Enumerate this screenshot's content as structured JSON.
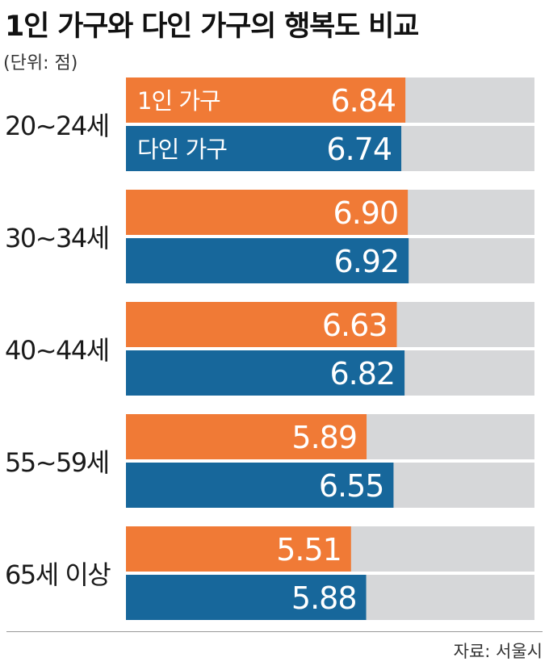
{
  "chart_data": {
    "type": "bar",
    "title": "1인 가구와 다인 가구의 행복도 비교",
    "unit_label": "(단위: 점)",
    "categories": [
      "20~24세",
      "30~34세",
      "40~44세",
      "55~59세",
      "65세 이상"
    ],
    "series": [
      {
        "name": "1인 가구",
        "color": "#f07a36",
        "values": [
          6.84,
          6.9,
          6.63,
          5.89,
          5.51
        ]
      },
      {
        "name": "다인 가구",
        "color": "#17679b",
        "values": [
          6.74,
          6.92,
          6.82,
          6.55,
          5.88
        ]
      }
    ],
    "track_color": "#d6d7d9",
    "xlim": [
      0,
      10
    ],
    "orientation": "horizontal",
    "legend": "inside-first-group",
    "grid": false
  },
  "source": "자료: 서울시"
}
